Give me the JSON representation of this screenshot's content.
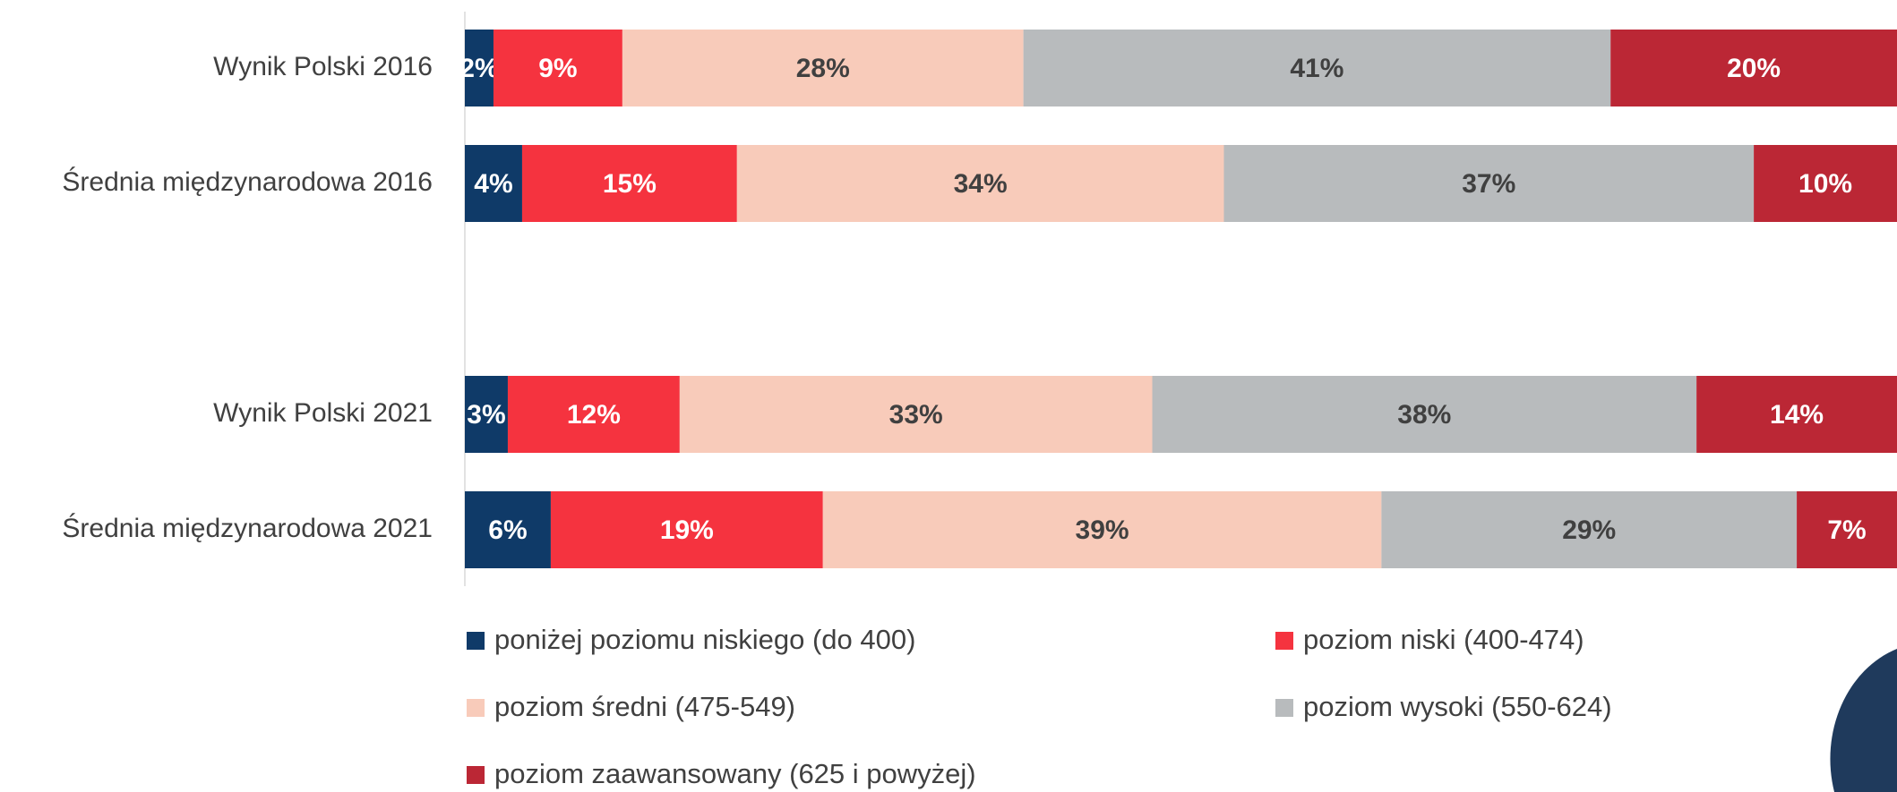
{
  "chart_data": {
    "type": "stacked-bar",
    "categories": [
      "Wynik Polski 2016",
      "Średnia międzynarodowa 2016",
      null,
      "Wynik Polski 2021",
      "Średnia międzynarodowa 2021"
    ],
    "xlim": [
      0,
      100
    ],
    "series": [
      {
        "name": "poniżej poziomu niskiego (do 400)",
        "color": "#0f3a68",
        "values": [
          2,
          4,
          null,
          3,
          6
        ],
        "value_labels": [
          "2%",
          "4%",
          null,
          "3%",
          "6%"
        ]
      },
      {
        "name": "poziom niski (400-474)",
        "color": "#f5333f",
        "values": [
          9,
          15,
          null,
          12,
          19
        ],
        "value_labels": [
          "9%",
          "15%",
          null,
          "12%",
          "19%"
        ]
      },
      {
        "name": "poziom średni (475-549)",
        "color": "#f8cbba",
        "values": [
          28,
          34,
          null,
          33,
          39
        ],
        "value_labels": [
          "28%",
          "34%",
          null,
          "33%",
          "39%"
        ]
      },
      {
        "name": "poziom wysoki (550-624)",
        "color": "#b8bbbd",
        "values": [
          41,
          37,
          null,
          38,
          29
        ],
        "value_labels": [
          "41%",
          "37%",
          null,
          "38%",
          "29%"
        ]
      },
      {
        "name": "poziom zaawansowany (625 i powyżej)",
        "color": "#bb2735",
        "values": [
          20,
          10,
          null,
          14,
          7
        ],
        "value_labels": [
          "20%",
          "10%",
          null,
          "14%",
          "7%"
        ]
      }
    ]
  }
}
